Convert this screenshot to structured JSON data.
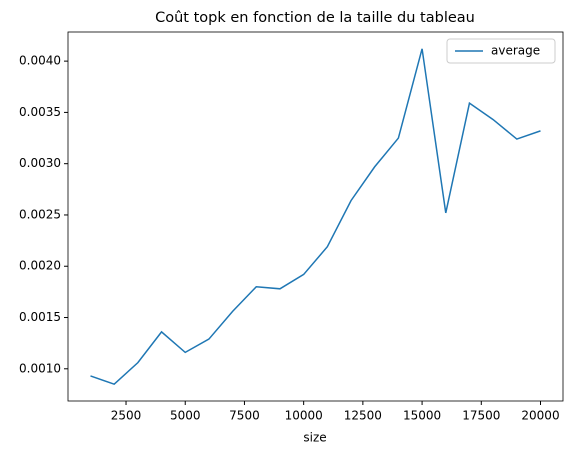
{
  "chart_data": {
    "type": "line",
    "title": "Coût topk en fonction de la taille du tableau",
    "x_label": "size",
    "x": [
      1000,
      2000,
      3000,
      4000,
      5000,
      6000,
      7000,
      8000,
      9000,
      10000,
      11000,
      12000,
      13000,
      14000,
      15000,
      16000,
      17000,
      18000,
      19000,
      20000
    ],
    "series": [
      {
        "name": "average",
        "color": "#1f77b4",
        "values": [
          0.00093,
          0.00085,
          0.00106,
          0.00136,
          0.00116,
          0.00129,
          0.00156,
          0.0018,
          0.00178,
          0.00192,
          0.00219,
          0.00264,
          0.00297,
          0.00325,
          0.00412,
          0.00252,
          0.00359,
          0.00343,
          0.00324,
          0.00332
        ]
      }
    ],
    "xlim": [
      50,
      20950
    ],
    "xticks": [
      2500,
      5000,
      7500,
      10000,
      12500,
      15000,
      17500,
      20000
    ],
    "ylim": [
      0.000686,
      0.004284
    ],
    "yticks": [
      {
        "value": 0.001,
        "label": "0.0010"
      },
      {
        "value": 0.0015,
        "label": "0.0015"
      },
      {
        "value": 0.002,
        "label": "0.0020"
      },
      {
        "value": 0.0025,
        "label": "0.0025"
      },
      {
        "value": 0.003,
        "label": "0.0030"
      },
      {
        "value": 0.0035,
        "label": "0.0035"
      },
      {
        "value": 0.004,
        "label": "0.0040"
      }
    ],
    "legend": "upper right"
  }
}
